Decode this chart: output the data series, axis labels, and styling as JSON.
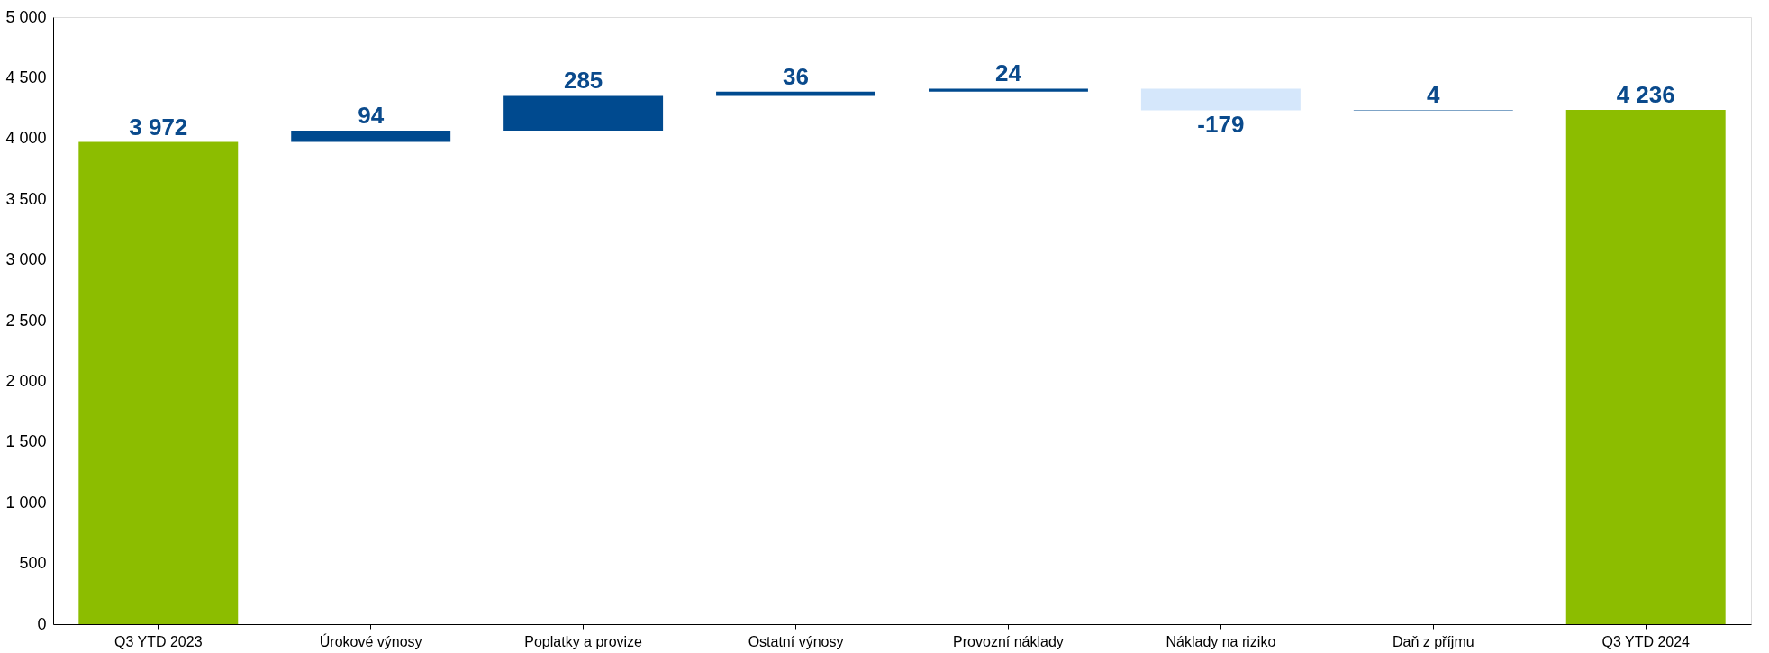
{
  "chart_data": {
    "type": "bar",
    "categories": [
      "Q3 YTD 2023",
      "Úrokové výnosy",
      "Poplatky a provize",
      "Ostatní výnosy",
      "Provozní náklady",
      "Náklady na riziko",
      "Daň z příjmu",
      "Q3 YTD 2024"
    ],
    "values": [
      3972,
      94,
      285,
      36,
      24,
      -179,
      4,
      4236
    ],
    "base": [
      0,
      3972,
      4066,
      4351,
      4387,
      4411,
      4232,
      0
    ],
    "colors": [
      "#8cbd00",
      "#004a8f",
      "#004a8f",
      "#004a8f",
      "#004a8f",
      "#d5e7fb",
      "#004a8f",
      "#8cbd00"
    ],
    "value_labels": [
      "3 972",
      "94",
      "285",
      "36",
      "24",
      "-179",
      "4",
      "4 236"
    ],
    "ylim": [
      0,
      5000
    ],
    "yticks": [
      0,
      500,
      {
        "value": 1000,
        "label": "1 000"
      },
      {
        "value": 1500,
        "label": "1 500"
      },
      {
        "value": 2000,
        "label": "2 000"
      },
      {
        "value": 2500,
        "label": "2 500"
      },
      {
        "value": 3000,
        "label": "3 000"
      },
      {
        "value": 3500,
        "label": "3 500"
      },
      {
        "value": 4000,
        "label": "4 000"
      },
      {
        "value": 4500,
        "label": "4 500"
      },
      {
        "value": 5000,
        "label": "5 000"
      }
    ],
    "grid": false
  }
}
